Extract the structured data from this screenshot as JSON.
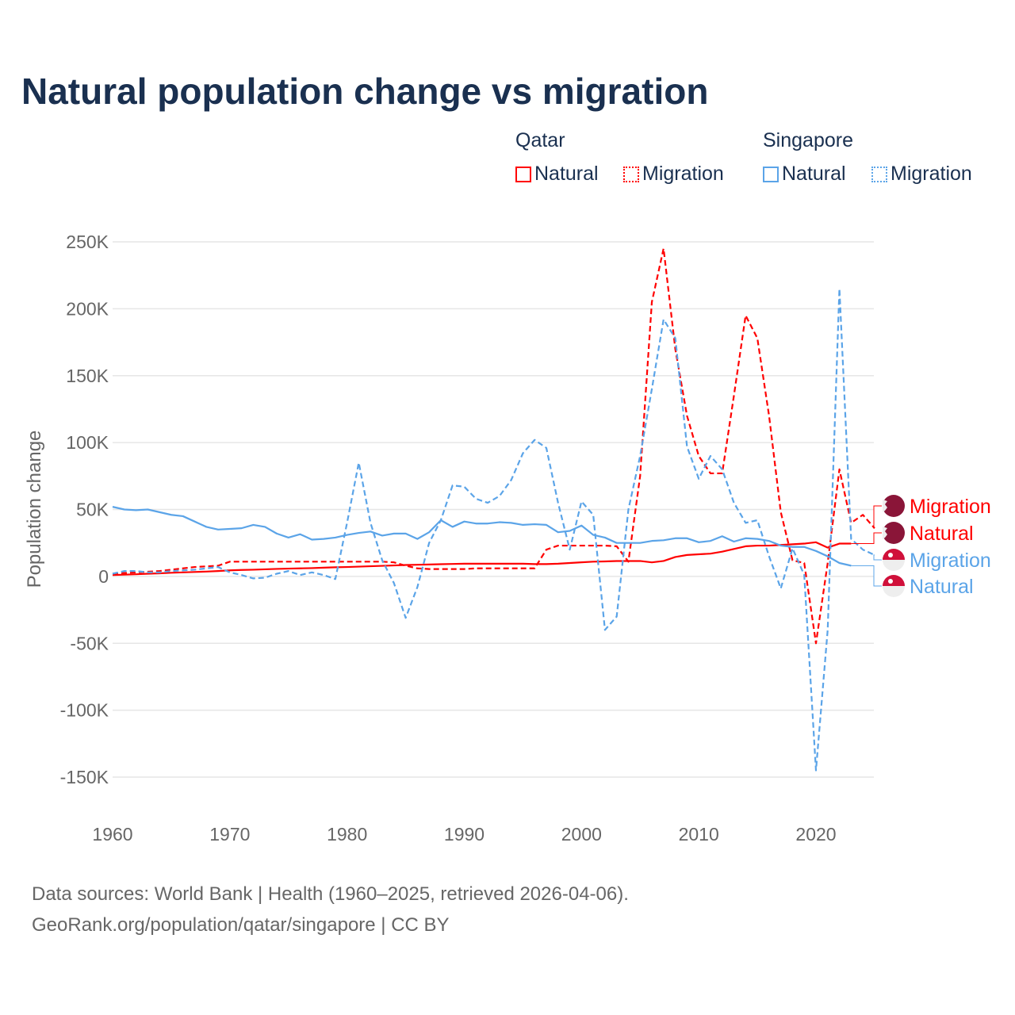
{
  "title": "Natural population change vs migration",
  "legend": {
    "groups": [
      {
        "name": "Qatar",
        "items": [
          {
            "label": "Natural",
            "style": "solid",
            "color": "#ff0000"
          },
          {
            "label": "Migration",
            "style": "dotted",
            "color": "#ff0000"
          }
        ]
      },
      {
        "name": "Singapore",
        "items": [
          {
            "label": "Natural",
            "style": "solid",
            "color": "#5ba4e8"
          },
          {
            "label": "Migration",
            "style": "dotted",
            "color": "#5ba4e8"
          }
        ]
      }
    ]
  },
  "source": {
    "line1": "Data sources: World Bank | Health (1960–2025, retrieved 2026-04-06).",
    "line2": "GeoRank.org/population/qatar/singapore | CC BY"
  },
  "chart_data": {
    "type": "line",
    "title": "Natural population change vs migration",
    "xlabel": "",
    "ylabel": "Population change",
    "xlim": [
      1960,
      2025
    ],
    "ylim": [
      -150000,
      250000
    ],
    "x_ticks": [
      1960,
      1970,
      1980,
      1990,
      2000,
      2010,
      2020
    ],
    "x_tick_labels": [
      "1960",
      "1970",
      "1980",
      "1990",
      "2000",
      "2010",
      "2020"
    ],
    "y_ticks": [
      250000,
      200000,
      150000,
      100000,
      50000,
      0,
      -50000,
      -100000,
      -150000
    ],
    "y_tick_labels": [
      "250K",
      "200K",
      "150K",
      "100K",
      "50K",
      "0",
      "-50K",
      "-100K",
      "-150K"
    ],
    "grid": true,
    "legend_position": "top-right",
    "series": [
      {
        "name": "Qatar Migration",
        "end_label": "Migration",
        "flag": "qatar",
        "color": "#ff0000",
        "dash": true,
        "start": 1960,
        "values": [
          2000,
          2500,
          3000,
          3500,
          4000,
          5000,
          6000,
          7000,
          7500,
          8000,
          11000,
          11000,
          11000,
          11000,
          11000,
          11000,
          11000,
          11000,
          11000,
          11000,
          11000,
          11000,
          11000,
          11000,
          10500,
          8000,
          6000,
          5500,
          5500,
          5500,
          5500,
          6000,
          6000,
          6000,
          6000,
          6000,
          6000,
          20000,
          23000,
          23000,
          23000,
          23000,
          23000,
          22500,
          11000,
          75000,
          205000,
          245000,
          170000,
          120000,
          90000,
          77000,
          77000,
          135000,
          195000,
          178000,
          120000,
          48000,
          12000,
          10000,
          -50000,
          10000,
          80000,
          40000,
          46000,
          36000
        ]
      },
      {
        "name": "Qatar Natural",
        "end_label": "Natural",
        "flag": "qatar",
        "color": "#ff0000",
        "dash": false,
        "start": 1960,
        "values": [
          1000,
          1300,
          1600,
          2000,
          2300,
          2700,
          3000,
          3300,
          3600,
          4000,
          4500,
          4800,
          5000,
          5300,
          5600,
          5800,
          6000,
          6200,
          6500,
          6800,
          7000,
          7300,
          7600,
          7900,
          8200,
          8500,
          8700,
          8900,
          9100,
          9300,
          9500,
          9500,
          9500,
          9500,
          9500,
          9500,
          9200,
          9200,
          9500,
          10000,
          10500,
          11000,
          11200,
          11500,
          11500,
          11500,
          10500,
          11500,
          14500,
          16000,
          16500,
          17000,
          18500,
          20500,
          22500,
          23000,
          23000,
          23500,
          24000,
          24500,
          25500,
          21500,
          24500,
          24500
        ]
      },
      {
        "name": "Singapore Migration",
        "end_label": "Migration",
        "flag": "singapore",
        "color": "#5ba4e8",
        "dash": true,
        "start": 1960,
        "values": [
          2000,
          4000,
          4000,
          3000,
          3000,
          4000,
          4500,
          5000,
          6000,
          7000,
          3000,
          1000,
          -1500,
          -1000,
          2000,
          4000,
          1000,
          3000,
          1000,
          -2000,
          40000,
          85000,
          40000,
          12000,
          -5000,
          -31000,
          -8000,
          25000,
          42000,
          68000,
          67000,
          58000,
          55000,
          60000,
          72000,
          92000,
          102000,
          96000,
          55000,
          20000,
          56000,
          46000,
          -40000,
          -30000,
          50000,
          90000,
          140000,
          192000,
          178000,
          97000,
          73000,
          90000,
          80000,
          55000,
          40000,
          42000,
          15000,
          -9000,
          21000,
          1000,
          -145000,
          -40000,
          215000,
          28000,
          20000,
          16000
        ]
      },
      {
        "name": "Singapore Natural",
        "end_label": "Natural",
        "flag": "singapore",
        "color": "#5ba4e8",
        "dash": false,
        "start": 1960,
        "values": [
          52000,
          50000,
          49500,
          50000,
          48000,
          46000,
          45000,
          41000,
          37000,
          35000,
          35500,
          36000,
          38500,
          37000,
          32000,
          29000,
          31500,
          27500,
          28000,
          29000,
          31000,
          32500,
          33500,
          30500,
          32000,
          32000,
          28000,
          33000,
          42000,
          37000,
          41000,
          39500,
          39500,
          40500,
          40000,
          38500,
          39000,
          38500,
          33000,
          34000,
          38000,
          31000,
          29000,
          25000,
          25000,
          25000,
          26500,
          27000,
          28500,
          28500,
          25500,
          26500,
          30000,
          26000,
          28500,
          28000,
          26500,
          23000,
          22000,
          22000,
          19000,
          15000,
          10000,
          8000
        ]
      }
    ]
  }
}
